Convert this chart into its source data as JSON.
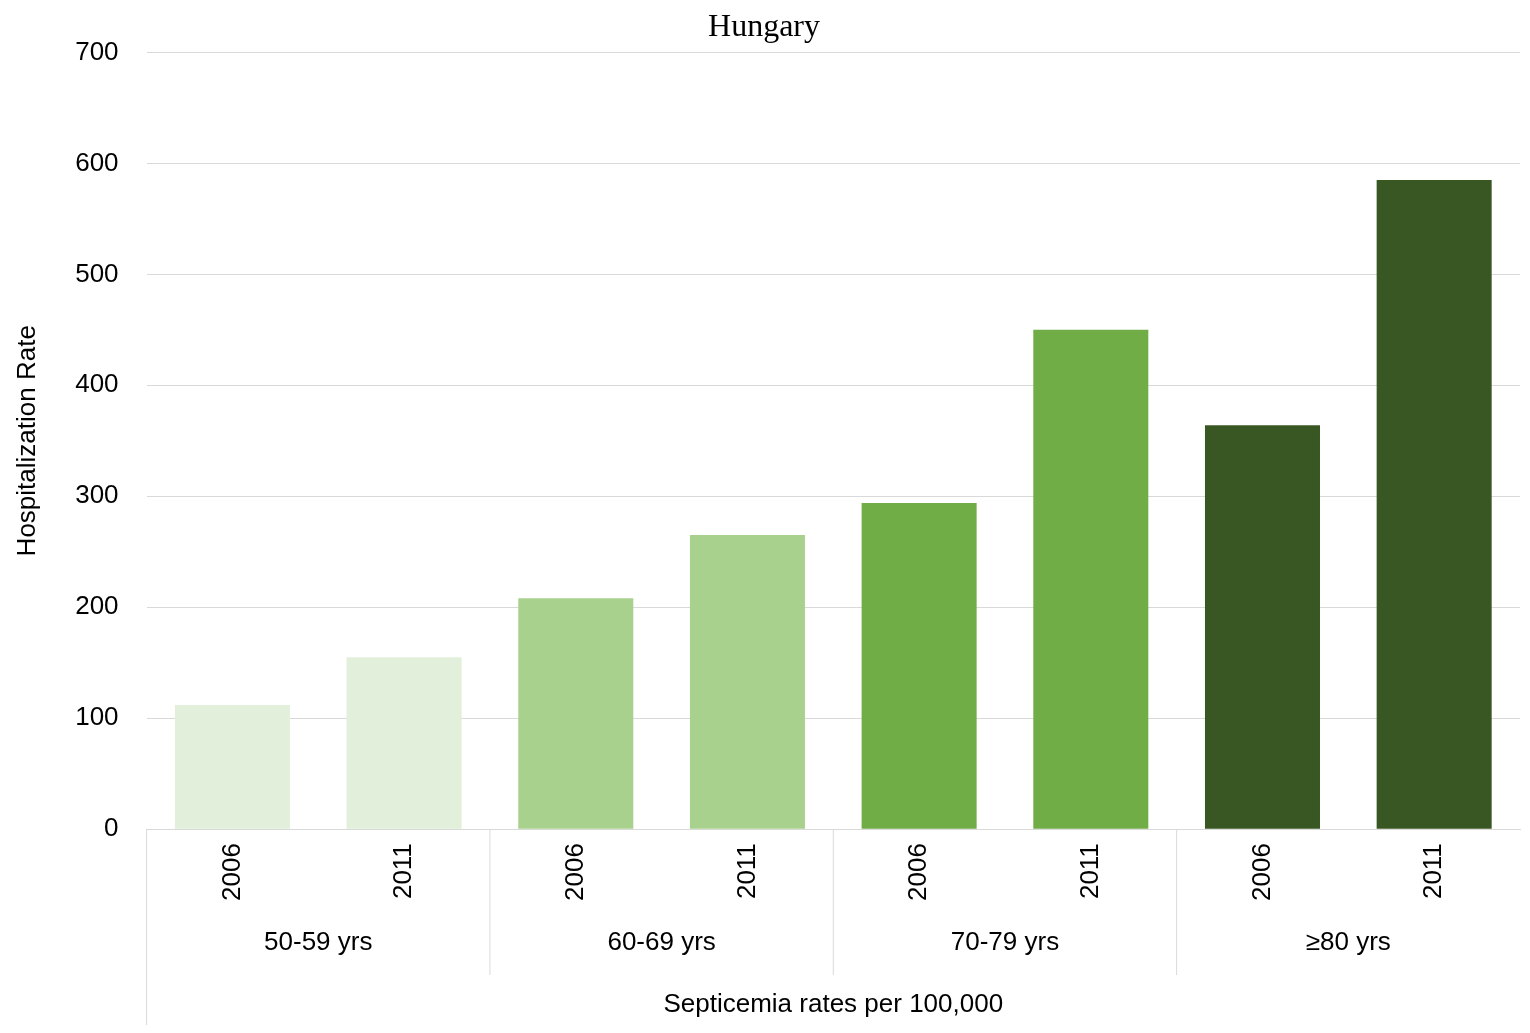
{
  "chart_data": {
    "type": "bar",
    "title": "Hungary",
    "ylabel": "Hospitalization Rate",
    "xlabel": "Septicemia rates per 100,000",
    "categories": [
      "2006",
      "2011",
      "2006",
      "2011",
      "2006",
      "2011",
      "2006",
      "2011"
    ],
    "values": [
      112,
      155,
      208,
      265,
      294,
      450,
      364,
      585
    ],
    "colors": [
      "#e2efda",
      "#e2efda",
      "#a9d18e",
      "#a9d18e",
      "#70ad47",
      "#70ad47",
      "#385723",
      "#385723"
    ],
    "annotations": [
      "50-59 yrs",
      "60-69 yrs",
      "70-79 yrs",
      "≥80 yrs"
    ],
    "ylim": [
      0,
      700
    ],
    "yticks": [
      0,
      100,
      200,
      300,
      400,
      500,
      600,
      700
    ],
    "grid": "y",
    "legend": false
  }
}
